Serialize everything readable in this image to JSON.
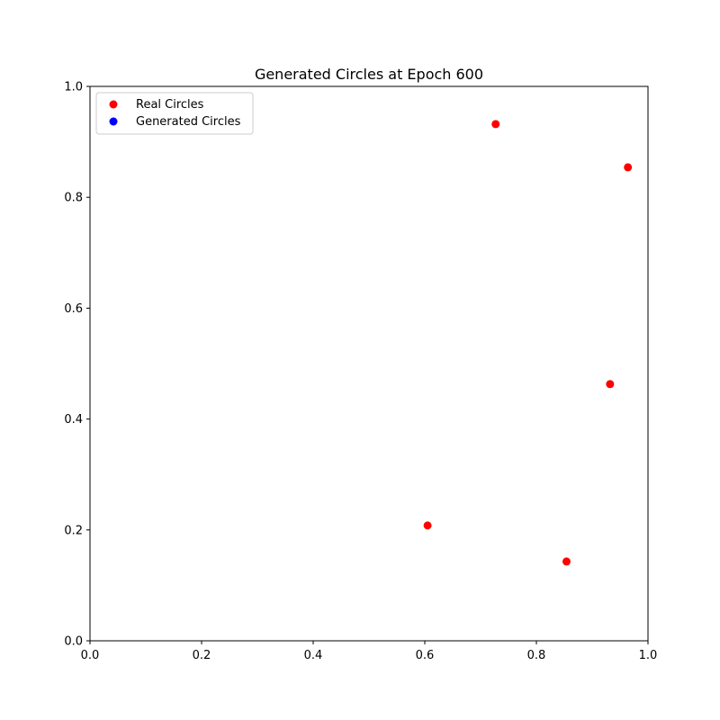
{
  "chart_data": {
    "type": "scatter",
    "title": "Generated Circles at Epoch 600",
    "xlabel": "",
    "ylabel": "",
    "xlim": [
      0,
      1
    ],
    "ylim": [
      0,
      1
    ],
    "x_ticks": [
      "0.0",
      "0.2",
      "0.4",
      "0.6",
      "0.8",
      "1.0"
    ],
    "y_ticks": [
      "0.0",
      "0.2",
      "0.4",
      "0.6",
      "0.8",
      "1.0"
    ],
    "grid": false,
    "legend_placement": "top-left",
    "series": [
      {
        "name": "Real Circles",
        "color": "#ff0000",
        "points": [
          {
            "x": 0.727,
            "y": 0.932
          },
          {
            "x": 0.964,
            "y": 0.854
          },
          {
            "x": 0.932,
            "y": 0.463
          },
          {
            "x": 0.605,
            "y": 0.208
          },
          {
            "x": 0.854,
            "y": 0.143
          }
        ]
      },
      {
        "name": "Generated Circles",
        "color": "#0000ff",
        "points": []
      }
    ]
  }
}
